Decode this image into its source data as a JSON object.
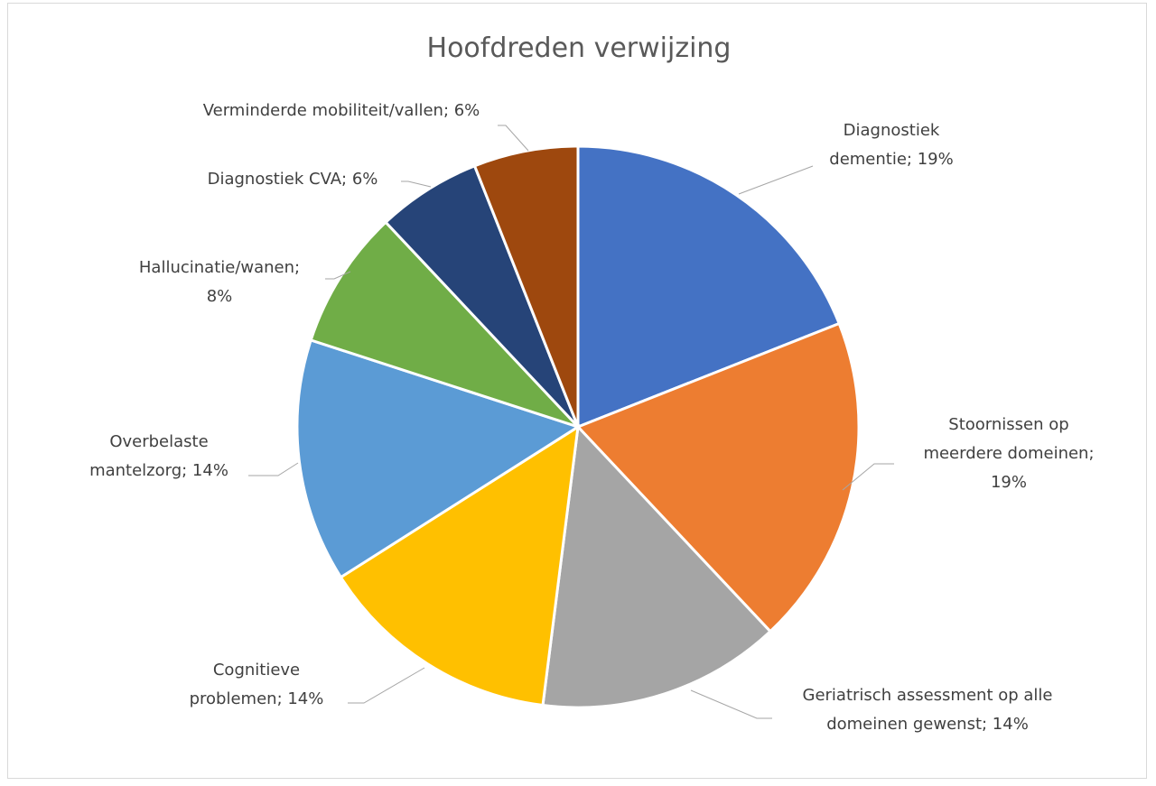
{
  "chart_data": {
    "type": "pie",
    "title": "Hoofdreden verwijzing",
    "slices": [
      {
        "name": "Diagnostiek dementie",
        "value": 19,
        "label": [
          "Diagnostiek",
          "dementie; 19%"
        ],
        "color": "#4472C4"
      },
      {
        "name": "Stoornissen op meerdere domeinen",
        "value": 19,
        "label": [
          "Stoornissen op",
          "meerdere domeinen;",
          "19%"
        ],
        "color": "#ED7D31"
      },
      {
        "name": "Geriatrisch assessment op alle domeinen gewenst",
        "value": 14,
        "label": [
          "Geriatrisch assessment op alle",
          "domeinen gewenst; 14%"
        ],
        "color": "#A5A5A5"
      },
      {
        "name": "Cognitieve problemen",
        "value": 14,
        "label": [
          "Cognitieve",
          "problemen; 14%"
        ],
        "color": "#FFC000"
      },
      {
        "name": "Overbelaste mantelzorg",
        "value": 14,
        "label": [
          "Overbelaste",
          "mantelzorg; 14%"
        ],
        "color": "#5B9BD5"
      },
      {
        "name": "Hallucinatie/wanen",
        "value": 8,
        "label": [
          "Hallucinatie/wanen;",
          "8%"
        ],
        "color": "#70AD47"
      },
      {
        "name": "Diagnostiek CVA",
        "value": 6,
        "label": [
          "Diagnostiek CVA; 6%"
        ],
        "color": "#264478"
      },
      {
        "name": "Verminderde mobiliteit/vallen",
        "value": 6,
        "label": [
          "Verminderde mobiliteit/vallen; 6%"
        ],
        "color": "#9E480E"
      }
    ]
  }
}
